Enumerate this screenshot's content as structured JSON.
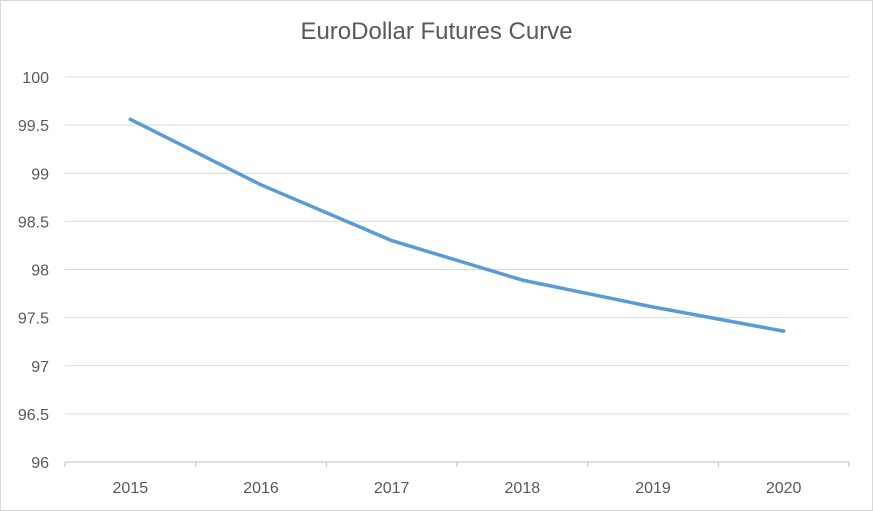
{
  "chart_data": {
    "type": "line",
    "title": "EuroDollar Futures Curve",
    "xlabel": "",
    "ylabel": "",
    "categories": [
      "2015",
      "2016",
      "2017",
      "2018",
      "2019",
      "2020"
    ],
    "series": [
      {
        "values": [
          99.56,
          98.88,
          98.3,
          97.89,
          97.61,
          97.36
        ],
        "color": "#5b9bd5"
      }
    ],
    "ylim": [
      96,
      100
    ],
    "yticks": [
      "96",
      "96.5",
      "97",
      "97.5",
      "98",
      "98.5",
      "99",
      "99.5",
      "100"
    ],
    "grid": true,
    "legend": "none",
    "colors": {
      "gridline": "#d9d9d9",
      "axis": "#bfbfbf",
      "text": "#595959"
    }
  }
}
